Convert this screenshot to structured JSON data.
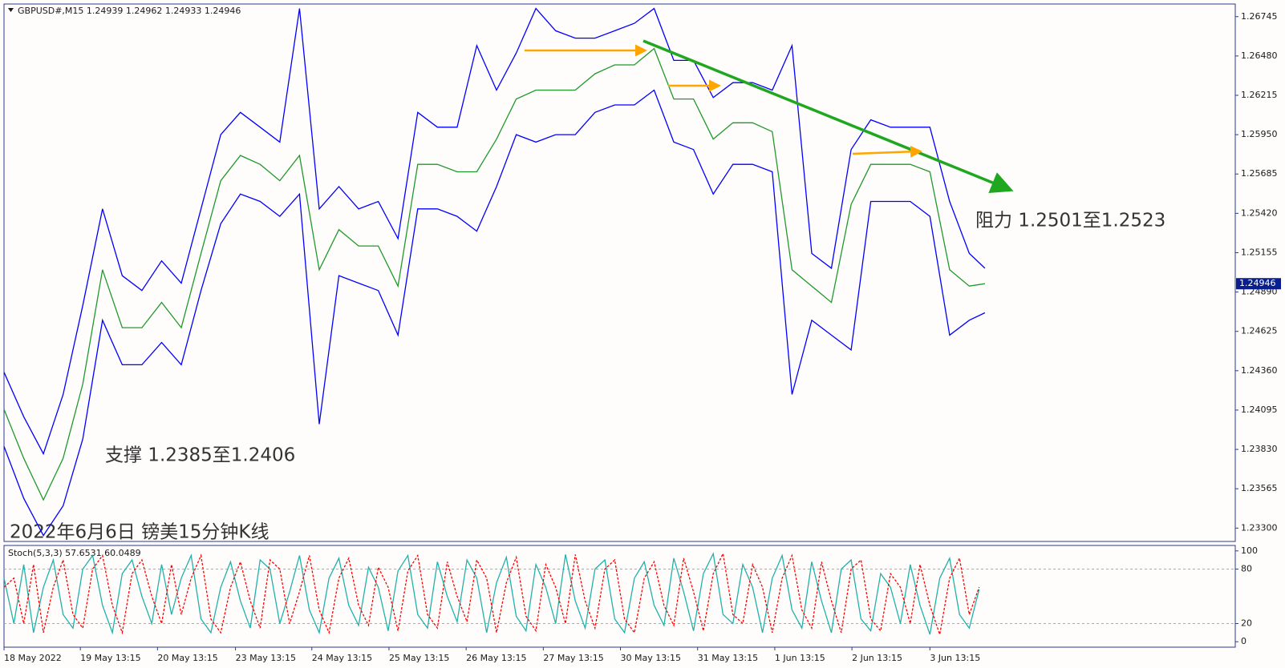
{
  "chart_data": [
    {
      "type": "line",
      "title": "GBPUSD#,M15  1.24939 1.24962 1.24933 1.24946",
      "annotations": [
        "阻力 1.2501至1.2523",
        "支撑 1.2385至1.2406",
        "2022年6月6日 镑美15分钟K线"
      ],
      "xlim": [
        0,
        1500
      ],
      "ylim": [
        1.2321,
        1.2683
      ],
      "yticks": [
        1.26745,
        {
          "value": 1.2648,
          "label": "1.26480"
        },
        1.26215,
        {
          "value": 1.2595,
          "label": "1.25950"
        },
        1.25685,
        {
          "value": 1.2542,
          "label": "1.25420"
        },
        1.25155,
        {
          "value": 1.2489,
          "label": "1.24890"
        },
        1.24625,
        {
          "value": 1.2436,
          "label": "1.24360"
        },
        1.24095,
        {
          "value": 1.2383,
          "label": "1.23830"
        },
        1.23565,
        {
          "value": 1.233,
          "label": "1.23300"
        }
      ],
      "x": [
        0,
        24,
        48,
        72,
        96,
        120,
        144,
        168,
        192,
        216,
        240,
        264,
        288,
        312,
        336,
        360,
        384,
        408,
        432,
        456,
        480,
        504,
        528,
        552,
        576,
        600,
        624,
        648,
        672,
        696,
        720,
        744,
        768,
        792,
        816,
        840,
        864,
        888,
        912,
        936,
        960,
        984,
        1008,
        1032,
        1056,
        1080,
        1104,
        1128,
        1152,
        1176,
        1195
      ],
      "series": [
        {
          "color": "#0000ff",
          "values": [
            1.2435,
            1.2405,
            1.238,
            1.242,
            1.248,
            1.2545,
            1.25,
            1.249,
            1.251,
            1.2495,
            1.2545,
            1.2595,
            1.261,
            1.26,
            1.259,
            1.268,
            1.2545,
            1.256,
            1.2545,
            1.255,
            1.2525,
            1.261,
            1.26,
            1.26,
            1.2655,
            1.2625,
            1.265,
            1.268,
            1.2665,
            1.266,
            1.266,
            1.2665,
            1.267,
            1.268,
            1.2645,
            1.2645,
            1.262,
            1.263,
            1.263,
            1.2625,
            1.2655,
            1.2515,
            1.2505,
            1.2585,
            1.2605,
            1.26,
            1.26,
            1.26,
            1.255,
            1.2515,
            1.2505
          ]
        },
        {
          "color": "#0000ff",
          "values": [
            1.2385,
            1.235,
            1.2325,
            1.2345,
            1.239,
            1.247,
            1.244,
            1.244,
            1.2455,
            1.244,
            1.249,
            1.2535,
            1.2555,
            1.255,
            1.254,
            1.2555,
            1.24,
            1.25,
            1.2495,
            1.249,
            1.246,
            1.2545,
            1.2545,
            1.254,
            1.253,
            1.256,
            1.2595,
            1.259,
            1.2595,
            1.2595,
            1.261,
            1.2615,
            1.2615,
            1.2625,
            1.259,
            1.2585,
            1.2555,
            1.2575,
            1.2575,
            1.257,
            1.242,
            1.247,
            1.246,
            1.245,
            1.255,
            1.255,
            1.255,
            1.254,
            1.246,
            1.247,
            1.2475
          ]
        },
        {
          "color": "#1f9a2a",
          "values": [
            1.241,
            1.2377,
            1.2349,
            1.2377,
            1.2427,
            1.2504,
            1.2465,
            1.2465,
            1.2482,
            1.2465,
            1.2515,
            1.2564,
            1.2581,
            1.2575,
            1.2564,
            1.2581,
            1.2504,
            1.2531,
            1.252,
            1.252,
            1.2493,
            1.2575,
            1.2575,
            1.257,
            1.257,
            1.2592,
            1.2619,
            1.2625,
            1.2625,
            1.2625,
            1.2636,
            1.2642,
            1.2642,
            1.2653,
            1.2619,
            1.2619,
            1.2592,
            1.2603,
            1.2603,
            1.2597,
            1.2504,
            1.2493,
            1.2482,
            1.2548,
            1.2575,
            1.2575,
            1.2575,
            1.257,
            1.2504,
            1.2493,
            1.24946
          ]
        }
      ]
    },
    {
      "type": "line",
      "title": "Stoch(5,3,3) 57.6531 60.0489",
      "xlim": [
        0,
        1500
      ],
      "ylim": [
        -6,
        106
      ],
      "yticks": [
        0,
        20,
        80,
        100
      ],
      "levels": [
        20,
        80
      ],
      "xticks": [
        {
          "value": 0,
          "label": "18 May 2022"
        },
        {
          "value": 93,
          "label": "19 May 13:15"
        },
        {
          "value": 187,
          "label": "20 May 13:15"
        },
        {
          "value": 282,
          "label": "23 May 13:15"
        },
        {
          "value": 375,
          "label": "24 May 13:15"
        },
        {
          "value": 469,
          "label": "25 May 13:15"
        },
        {
          "value": 563,
          "label": "26 May 13:15"
        },
        {
          "value": 657,
          "label": "27 May 13:15"
        },
        {
          "value": 751,
          "label": "30 May 13:15"
        },
        {
          "value": 845,
          "label": "31 May 13:15"
        },
        {
          "value": 939,
          "label": "1 Jun 13:15"
        },
        {
          "value": 1033,
          "label": "2 Jun 13:15"
        },
        {
          "value": 1128,
          "label": "3 Jun 13:15"
        }
      ],
      "x": [
        0,
        12,
        24,
        36,
        48,
        60,
        72,
        84,
        96,
        108,
        120,
        132,
        144,
        156,
        168,
        180,
        192,
        204,
        216,
        228,
        240,
        252,
        264,
        276,
        288,
        300,
        312,
        324,
        336,
        348,
        360,
        372,
        384,
        396,
        408,
        420,
        432,
        444,
        456,
        468,
        480,
        492,
        504,
        516,
        528,
        540,
        552,
        564,
        576,
        588,
        600,
        612,
        624,
        636,
        648,
        660,
        672,
        684,
        696,
        708,
        720,
        732,
        744,
        756,
        768,
        780,
        792,
        804,
        816,
        828,
        840,
        852,
        864,
        876,
        888,
        900,
        912,
        924,
        936,
        948,
        960,
        972,
        984,
        996,
        1008,
        1020,
        1032,
        1044,
        1056,
        1068,
        1080,
        1092,
        1104,
        1116,
        1128,
        1140,
        1152,
        1164,
        1176,
        1188
      ],
      "series": [
        {
          "color": "#20b2aa",
          "values": [
            70,
            20,
            85,
            10,
            60,
            90,
            30,
            15,
            80,
            95,
            40,
            10,
            75,
            90,
            50,
            20,
            85,
            30,
            70,
            95,
            25,
            10,
            60,
            88,
            45,
            15,
            90,
            80,
            20,
            55,
            95,
            35,
            10,
            70,
            92,
            40,
            18,
            82,
            60,
            12,
            78,
            95,
            30,
            15,
            88,
            50,
            22,
            90,
            70,
            10,
            65,
            93,
            28,
            12,
            85,
            60,
            20,
            96,
            45,
            15,
            80,
            90,
            25,
            10,
            70,
            88,
            40,
            18,
            92,
            55,
            12,
            75,
            97,
            30,
            20,
            85,
            60,
            10,
            70,
            95,
            35,
            15,
            88,
            45,
            10,
            80,
            90,
            25,
            12,
            75,
            60,
            20,
            85,
            40,
            8,
            70,
            92,
            30,
            15,
            57.6531
          ]
        },
        {
          "color": "#ff0000",
          "style": "dashed",
          "values": [
            60,
            70,
            20,
            85,
            10,
            60,
            90,
            30,
            15,
            80,
            95,
            40,
            10,
            75,
            90,
            50,
            20,
            85,
            30,
            70,
            95,
            25,
            10,
            60,
            88,
            45,
            15,
            90,
            80,
            20,
            55,
            95,
            35,
            10,
            70,
            92,
            40,
            18,
            82,
            60,
            12,
            78,
            95,
            30,
            15,
            88,
            50,
            22,
            90,
            70,
            10,
            65,
            93,
            28,
            12,
            85,
            60,
            20,
            96,
            45,
            15,
            80,
            90,
            25,
            10,
            70,
            88,
            40,
            18,
            92,
            55,
            12,
            75,
            97,
            30,
            20,
            85,
            60,
            10,
            70,
            95,
            35,
            15,
            88,
            45,
            10,
            80,
            90,
            25,
            12,
            75,
            60,
            20,
            85,
            40,
            8,
            70,
            92,
            30,
            60.0489
          ]
        }
      ]
    }
  ]
}
